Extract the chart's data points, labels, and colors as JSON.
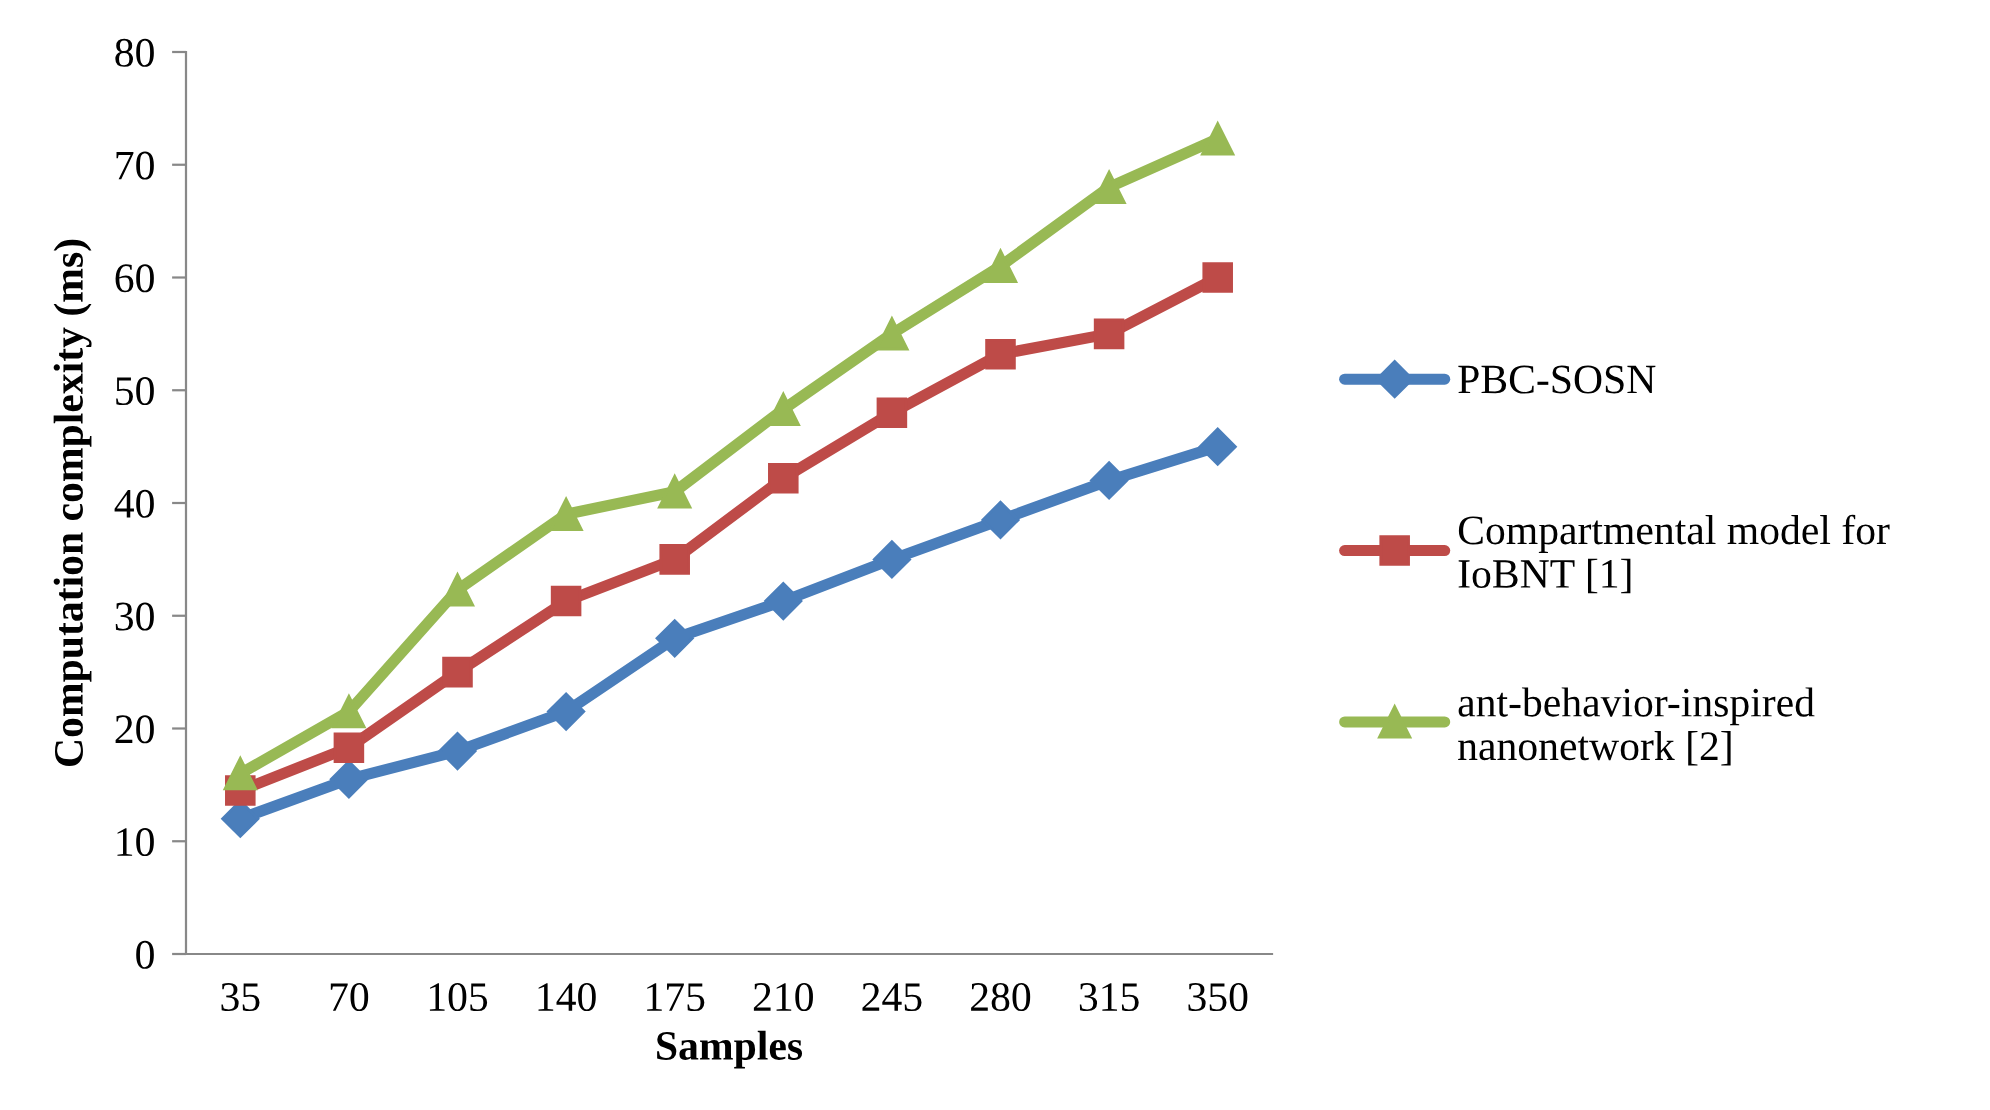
{
  "chart_data": {
    "type": "line",
    "xlabel": "Samples",
    "ylabel": "Computation complexity (ms)",
    "categories": [
      "35",
      "70",
      "105",
      "140",
      "175",
      "210",
      "245",
      "280",
      "315",
      "350"
    ],
    "ylim": [
      0,
      80
    ],
    "yticks": [
      0,
      10,
      20,
      30,
      40,
      50,
      60,
      70,
      80
    ],
    "grid": false,
    "legend": "right",
    "series": [
      {
        "name": "PBC-SOSN",
        "color": "#4a7ebb",
        "marker": "diamond",
        "values": [
          12,
          15.5,
          18,
          21.5,
          28,
          31.3,
          35,
          38.5,
          42,
          45
        ]
      },
      {
        "name": "Compartmental model for IoBNT [1]",
        "color": "#be4b48",
        "marker": "square",
        "values": [
          14.5,
          18.3,
          25,
          31.3,
          35,
          42.2,
          48,
          53.2,
          55,
          60
        ]
      },
      {
        "name": "ant-behavior-inspired nanonetwork [2]",
        "color": "#98b954",
        "marker": "triangle",
        "values": [
          16,
          21.5,
          32.3,
          39,
          41,
          48.3,
          55,
          61,
          68,
          72.3
        ]
      }
    ]
  }
}
